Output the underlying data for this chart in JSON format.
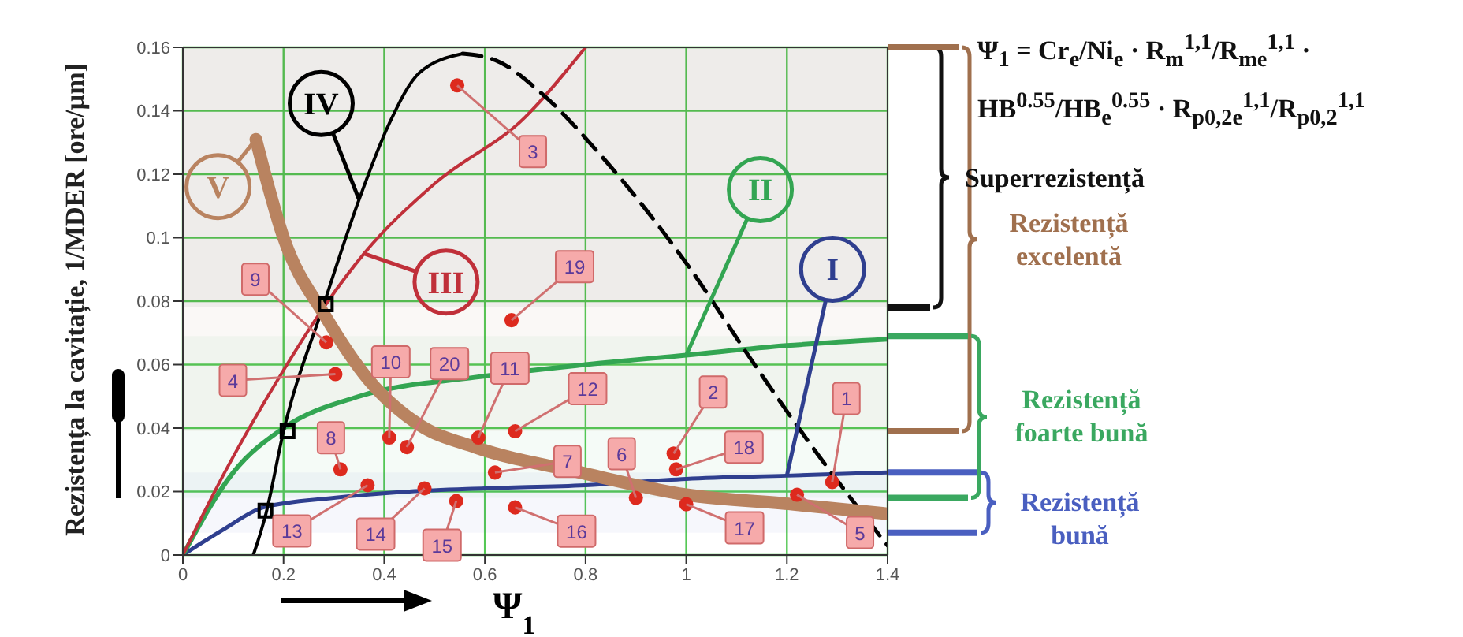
{
  "chart_data": {
    "type": "line",
    "xlabel": "Ψ$_{1}$",
    "ylabel": "Rezistența la cavitație, 1/MDER [ore/µm]",
    "xlim": [
      0,
      1.4
    ],
    "ylim": [
      0,
      0.16
    ],
    "xticks": [
      0,
      0.2,
      0.4,
      0.6,
      0.8,
      1,
      1.2,
      1.4
    ],
    "yticks": [
      0,
      0.02,
      0.04,
      0.06,
      0.08,
      0.1,
      0.12,
      0.14,
      0.16
    ],
    "grid": true,
    "marker": "none",
    "series": [
      {
        "name": "I",
        "color": "#2f3f8f",
        "x": [
          0,
          0.08,
          0.16,
          0.3,
          0.45,
          0.6,
          0.8,
          1.0,
          1.2,
          1.4
        ],
        "values": [
          0,
          0.008,
          0.015,
          0.018,
          0.02,
          0.021,
          0.022,
          0.024,
          0.025,
          0.026
        ]
      },
      {
        "name": "II",
        "color": "#33a552",
        "x": [
          0,
          0.1,
          0.2,
          0.35,
          0.58,
          0.8,
          1.0,
          1.2,
          1.4
        ],
        "values": [
          0,
          0.026,
          0.04,
          0.05,
          0.056,
          0.06,
          0.063,
          0.066,
          0.068
        ]
      },
      {
        "name": "III",
        "color": "#c0303a",
        "x": [
          0,
          0.083,
          0.18,
          0.284,
          0.36,
          0.5,
          0.68,
          0.8
        ],
        "values": [
          0,
          0.026,
          0.053,
          0.079,
          0.095,
          0.117,
          0.138,
          0.16
        ]
      },
      {
        "name": "IV",
        "color": "#000000",
        "x": [
          0.14,
          0.165,
          0.2,
          0.28,
          0.35,
          0.41,
          0.47,
          0.556
        ],
        "values": [
          0,
          0.013,
          0.039,
          0.079,
          0.112,
          0.136,
          0.152,
          0.158
        ]
      },
      {
        "color": "#000000",
        "line_style": "dashed",
        "x": [
          0.556,
          0.62,
          0.716,
          0.83,
          1.0,
          1.14,
          1.26,
          1.4
        ],
        "values": [
          0.158,
          0.156,
          0.145,
          0.126,
          0.092,
          0.059,
          0.032,
          0.003
        ]
      },
      {
        "name": "V",
        "color": "#b98360",
        "x": [
          0.145,
          0.2,
          0.284,
          0.37,
          0.47,
          0.58,
          0.79,
          1.0,
          1.21,
          1.4
        ],
        "values": [
          0.131,
          0.1,
          0.075,
          0.055,
          0.041,
          0.034,
          0.026,
          0.019,
          0.016,
          0.013
        ]
      },
      {
        "type": "scatter",
        "color": "#dd2a1e",
        "marker": "circle",
        "x": [
          1.29,
          0.975,
          0.545,
          0.303,
          1.22,
          0.9,
          0.62,
          0.313,
          0.285,
          0.41,
          0.587,
          0.66,
          0.367,
          0.48,
          0.543,
          0.66,
          1.0,
          0.98,
          0.653,
          0.445
        ],
        "values": [
          0.023,
          0.032,
          0.148,
          0.057,
          0.019,
          0.018,
          0.026,
          0.027,
          0.067,
          0.037,
          0.037,
          0.039,
          0.022,
          0.021,
          0.017,
          0.015,
          0.016,
          0.027,
          0.074,
          0.034
        ]
      },
      {
        "type": "scatter",
        "color": "#000000",
        "marker": "square",
        "x": [
          0.284,
          0.208,
          0.164
        ],
        "values": [
          0.079,
          0.039,
          0.014
        ]
      }
    ],
    "bands": [
      {
        "axis": "y",
        "from": 0.078,
        "to": 0.16,
        "label": "Superrezistență",
        "color": "#111111"
      },
      {
        "axis": "y",
        "from": 0.039,
        "to": 0.16,
        "label": "Rezistență excelentă",
        "color": "#a0704e"
      },
      {
        "axis": "y",
        "from": 0.018,
        "to": 0.069,
        "label": "Rezistență foarte bună",
        "color": "#3aa860"
      },
      {
        "axis": "y",
        "from": 0.007,
        "to": 0.026,
        "label": "Rezistență bună",
        "color": "#4a5fc0"
      }
    ],
    "annotations": [
      "Ψ$_{1}$ = Cr$_{e}$/Ni$_{e}$ · R$_{m}$$^{1,1}$/R$_{me}$$^{1,1}$ · HB$^{0.55}$/HB$_{e}$$^{0.55}$ · R$_{p0,2e}$$^{1,1}$/R$_{p0,2}$$^{1,1}$",
      {
        "text": "1",
        "x": 1.29,
        "y": 0.023
      },
      {
        "text": "2",
        "x": 0.975,
        "y": 0.032
      },
      {
        "text": "3",
        "x": 0.545,
        "y": 0.148
      },
      {
        "text": "4",
        "x": 0.303,
        "y": 0.057
      },
      {
        "text": "5",
        "x": 1.22,
        "y": 0.019
      },
      {
        "text": "6",
        "x": 0.9,
        "y": 0.018
      },
      {
        "text": "7",
        "x": 0.62,
        "y": 0.026
      },
      {
        "text": "8",
        "x": 0.313,
        "y": 0.027
      },
      {
        "text": "9",
        "x": 0.285,
        "y": 0.067
      },
      {
        "text": "10",
        "x": 0.41,
        "y": 0.037
      },
      {
        "text": "11",
        "x": 0.587,
        "y": 0.037
      },
      {
        "text": "12",
        "x": 0.66,
        "y": 0.039
      },
      {
        "text": "13",
        "x": 0.367,
        "y": 0.022
      },
      {
        "text": "14",
        "x": 0.48,
        "y": 0.021
      },
      {
        "text": "15",
        "x": 0.543,
        "y": 0.017
      },
      {
        "text": "16",
        "x": 0.66,
        "y": 0.015
      },
      {
        "text": "17",
        "x": 1.0,
        "y": 0.016
      },
      {
        "text": "18",
        "x": 0.98,
        "y": 0.027
      },
      {
        "text": "19",
        "x": 0.653,
        "y": 0.074
      },
      {
        "text": "20",
        "x": 0.445,
        "y": 0.034
      }
    ]
  }
}
